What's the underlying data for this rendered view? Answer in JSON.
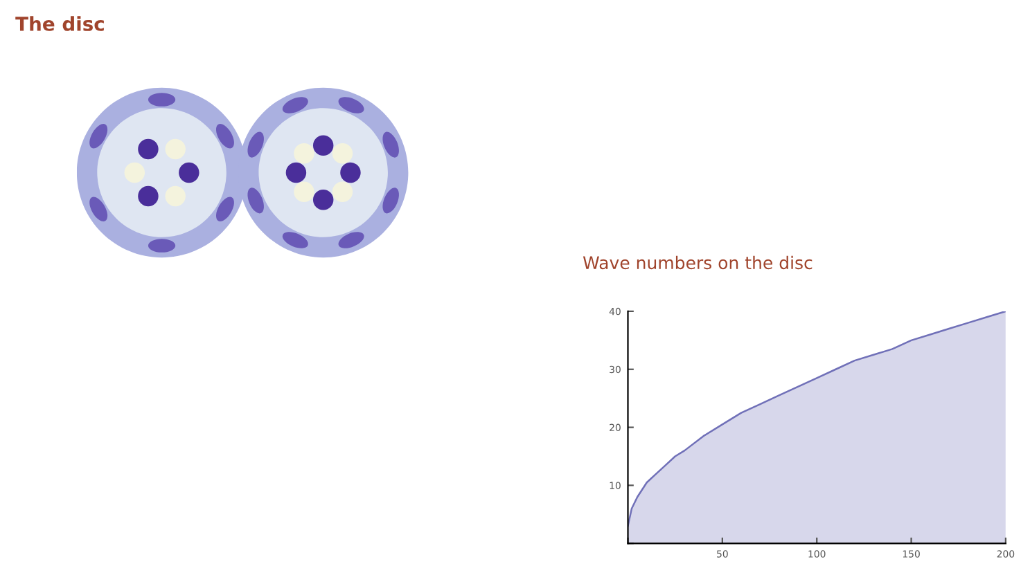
{
  "chart_data": {
    "type": "area",
    "title": "Wave numbers on the disc",
    "annotations": [
      "The disc"
    ],
    "x": [
      0,
      2,
      5,
      10,
      15,
      20,
      25,
      30,
      40,
      50,
      60,
      70,
      80,
      90,
      100,
      110,
      120,
      130,
      140,
      150,
      160,
      170,
      180,
      190,
      200
    ],
    "series": [
      {
        "color": "#7070b8",
        "values": [
          3,
          6,
          8,
          10.5,
          12,
          13.5,
          15,
          16,
          18.5,
          20.5,
          22.5,
          24,
          25.5,
          27,
          28.5,
          30,
          31.5,
          32.5,
          33.5,
          35,
          36,
          37,
          38,
          39,
          40
        ]
      }
    ],
    "xlim": [
      0,
      200
    ],
    "ylim": [
      0,
      40
    ],
    "xticks": [
      {
        "value": 0,
        "label": null
      },
      50,
      100,
      150,
      200
    ],
    "yticks": [
      {
        "value": 0,
        "label": null
      },
      10,
      20,
      30,
      40
    ],
    "grid": false,
    "legend": false
  }
}
